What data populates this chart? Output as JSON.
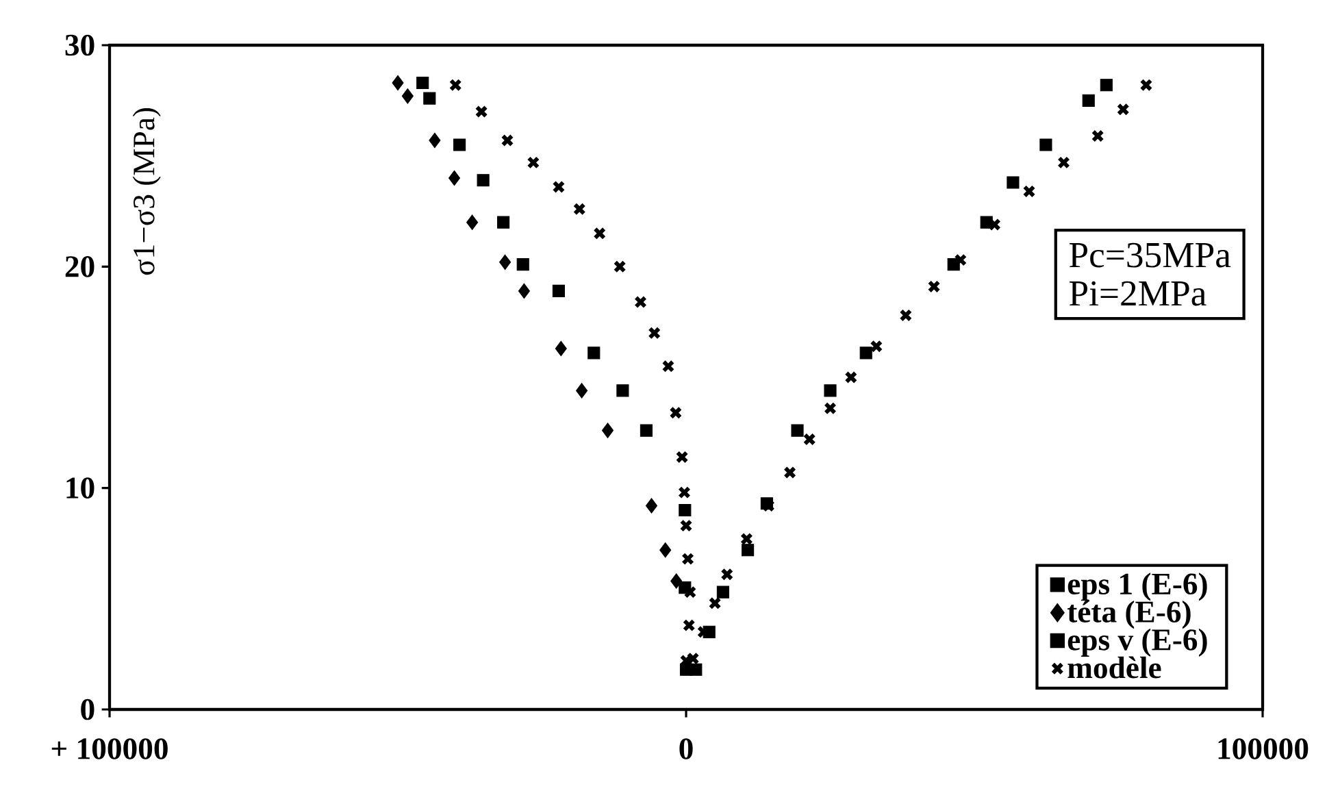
{
  "chart_data": {
    "type": "scatter",
    "ylabel": "σ1−σ3  (MPa)",
    "xlim": [
      -100000,
      100000
    ],
    "ylim": [
      0,
      30
    ],
    "xticks": [
      {
        "value": -100000,
        "label": "+ 100000"
      },
      0,
      100000
    ],
    "yticks": [
      0,
      10,
      20,
      30
    ],
    "grid": false,
    "legend": "bottom right",
    "annotations": [
      "Pc=35MPa",
      "Pi=2MPa"
    ],
    "series": [
      {
        "name": "eps 1 (E-6)",
        "color": "#000000",
        "marker": "square",
        "x": [
          1700,
          4000,
          6400,
          10700,
          14000,
          19300,
          25000,
          31200,
          46400,
          52100,
          56700,
          62400,
          69800,
          72900
        ],
        "values": [
          1.8,
          3.5,
          5.3,
          7.2,
          9.3,
          12.6,
          14.4,
          16.1,
          20.1,
          22.0,
          23.8,
          25.5,
          27.5,
          28.2
        ]
      },
      {
        "name": "téta (E-6)",
        "color": "#000000",
        "marker": "diamond",
        "x": [
          -50000,
          -48300,
          -43600,
          -40200,
          -37100,
          -31400,
          -28100,
          -21700,
          -18100,
          -13600,
          -6000,
          -3600,
          -1700
        ],
        "values": [
          28.3,
          27.7,
          25.7,
          24.0,
          22.0,
          20.2,
          18.9,
          16.3,
          14.4,
          12.6,
          9.2,
          7.2,
          5.8
        ]
      },
      {
        "name": "eps v (E-6)",
        "color": "#000000",
        "marker": "square",
        "x": [
          -45700,
          -44500,
          -39300,
          -35200,
          -31700,
          -28300,
          -22100,
          -16000,
          -11000,
          -6900,
          -200,
          -200,
          0
        ],
        "values": [
          28.3,
          27.6,
          25.5,
          23.9,
          22.0,
          20.1,
          18.9,
          16.1,
          14.4,
          12.6,
          9.0,
          5.5,
          1.8
        ]
      },
      {
        "name": "modèle",
        "color": "#000000",
        "marker": "cross",
        "x": [
          -40000,
          -35500,
          -31000,
          -26500,
          -22100,
          -18500,
          -15000,
          -11500,
          -7900,
          -5500,
          -3100,
          -1800,
          -700,
          -300,
          0,
          300,
          700,
          500,
          0,
          1200,
          3000,
          5000,
          7100,
          10500,
          14300,
          18000,
          21400,
          25000,
          28600,
          33000,
          38100,
          43000,
          47600,
          53500,
          59500,
          65500,
          71400,
          75800,
          79800
        ],
        "values": [
          28.2,
          27.0,
          25.7,
          24.7,
          23.6,
          22.6,
          21.5,
          20.0,
          18.4,
          17.0,
          15.5,
          13.4,
          11.4,
          9.8,
          8.3,
          6.8,
          5.3,
          3.8,
          2.2,
          2.3,
          3.5,
          4.8,
          6.1,
          7.7,
          9.2,
          10.7,
          12.2,
          13.6,
          15.0,
          16.4,
          17.8,
          19.1,
          20.3,
          21.9,
          23.4,
          24.7,
          25.9,
          27.1,
          28.2
        ]
      }
    ]
  }
}
